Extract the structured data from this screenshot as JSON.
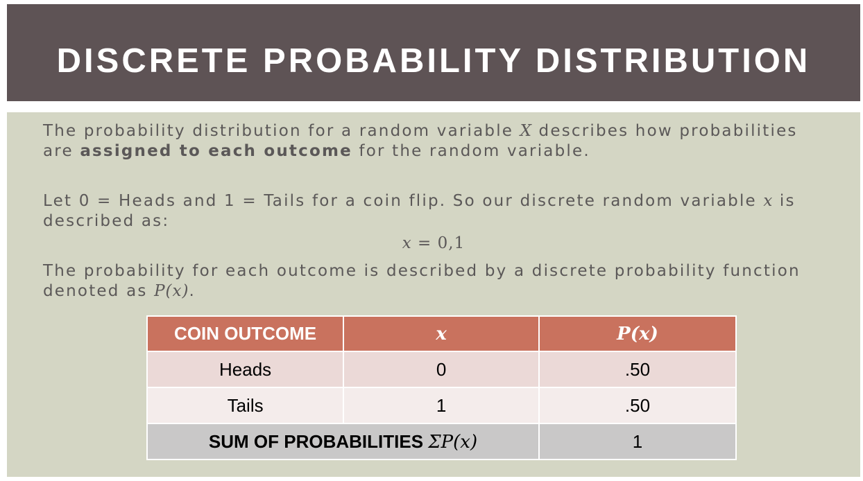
{
  "title": "DISCRETE PROBABILITY DISTRIBUTION",
  "paragraph1": {
    "part1": "The probability distribution for a random variable ",
    "var": "X",
    "part2": " describes how probabilities are ",
    "bold": "assigned to each outcome",
    "part3": " for the random variable."
  },
  "paragraph2": {
    "part1": "Let 0 = Heads and 1 = Tails for a coin flip. So our discrete random variable ",
    "var": "x",
    "part2": " is described as:"
  },
  "equation": {
    "var": "x",
    "rest": " = 0,1"
  },
  "paragraph3": {
    "part1": "The probability for each outcome is described by a discrete probability function denoted as ",
    "func": "P(x)",
    "part2": "."
  },
  "table": {
    "headers": [
      "COIN OUTCOME",
      "x",
      "P(x)"
    ],
    "rows": [
      [
        "Heads",
        "0",
        ".50"
      ],
      [
        "Tails",
        "1",
        ".50"
      ]
    ],
    "sum_label": "SUM OF PROBABILITIES ",
    "sum_symbol": "ΣP(x)",
    "sum_value": "1"
  }
}
